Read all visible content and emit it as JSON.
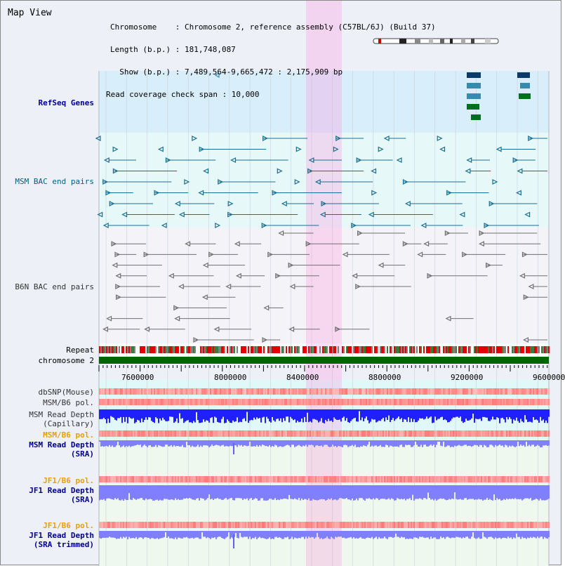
{
  "title": "Map View",
  "info": {
    "chromosome_line": "Chromosome    : Chromosome 2, reference assembly (C57BL/6J) (Build 37)",
    "length_line": "Length (b.p.) : 181,748,087",
    "show_line": "  Show (b.p.) : 7,489,564-9,665,472 : 2,175,909 bp",
    "coverage_line": "Read coverage check span : 10,000"
  },
  "tracks": {
    "refseq": "RefSeq Genes",
    "msm_bac": "MSM BAC end pairs",
    "b6n_bac": "B6N BAC end pairs",
    "repeat": "Repeat",
    "chromosome": "chromosome 2",
    "dbsnp": "dbSNP(Mouse)",
    "msm_b6_pol_1": "MSM/B6 pol.",
    "msm_read_depth_cap_1": "MSM Read Depth",
    "msm_read_depth_cap_2": "(Capillary)",
    "msm_b6_pol_2": "MSM/B6 pol.",
    "msm_read_depth_sra_1": "MSM Read Depth",
    "msm_read_depth_sra_2": "(SRA)",
    "jf1_b6_pol_1": "JF1/B6 pol.",
    "jf1_read_depth_sra_1": "JF1 Read Depth",
    "jf1_read_depth_sra_2": "(SRA)",
    "jf1_b6_pol_2": "JF1/B6 pol.",
    "jf1_read_depth_trim_1": "JF1 Read Depth",
    "jf1_read_depth_trim_2": "(SRA trimmed)"
  },
  "axis": {
    "ticks": [
      "7600000",
      "8000000",
      "8400000",
      "8800000",
      "9200000",
      "9600000"
    ]
  },
  "colors": {
    "refseq_bg": "#d8eefa",
    "bac_bg": "#e6f8f8",
    "msm_feature": "#1a6e8e",
    "b6n_feature": "#707070",
    "chromosome_bar": "#006400",
    "repeat_red": "#e00000",
    "highlight": "#ff8cdc"
  }
}
